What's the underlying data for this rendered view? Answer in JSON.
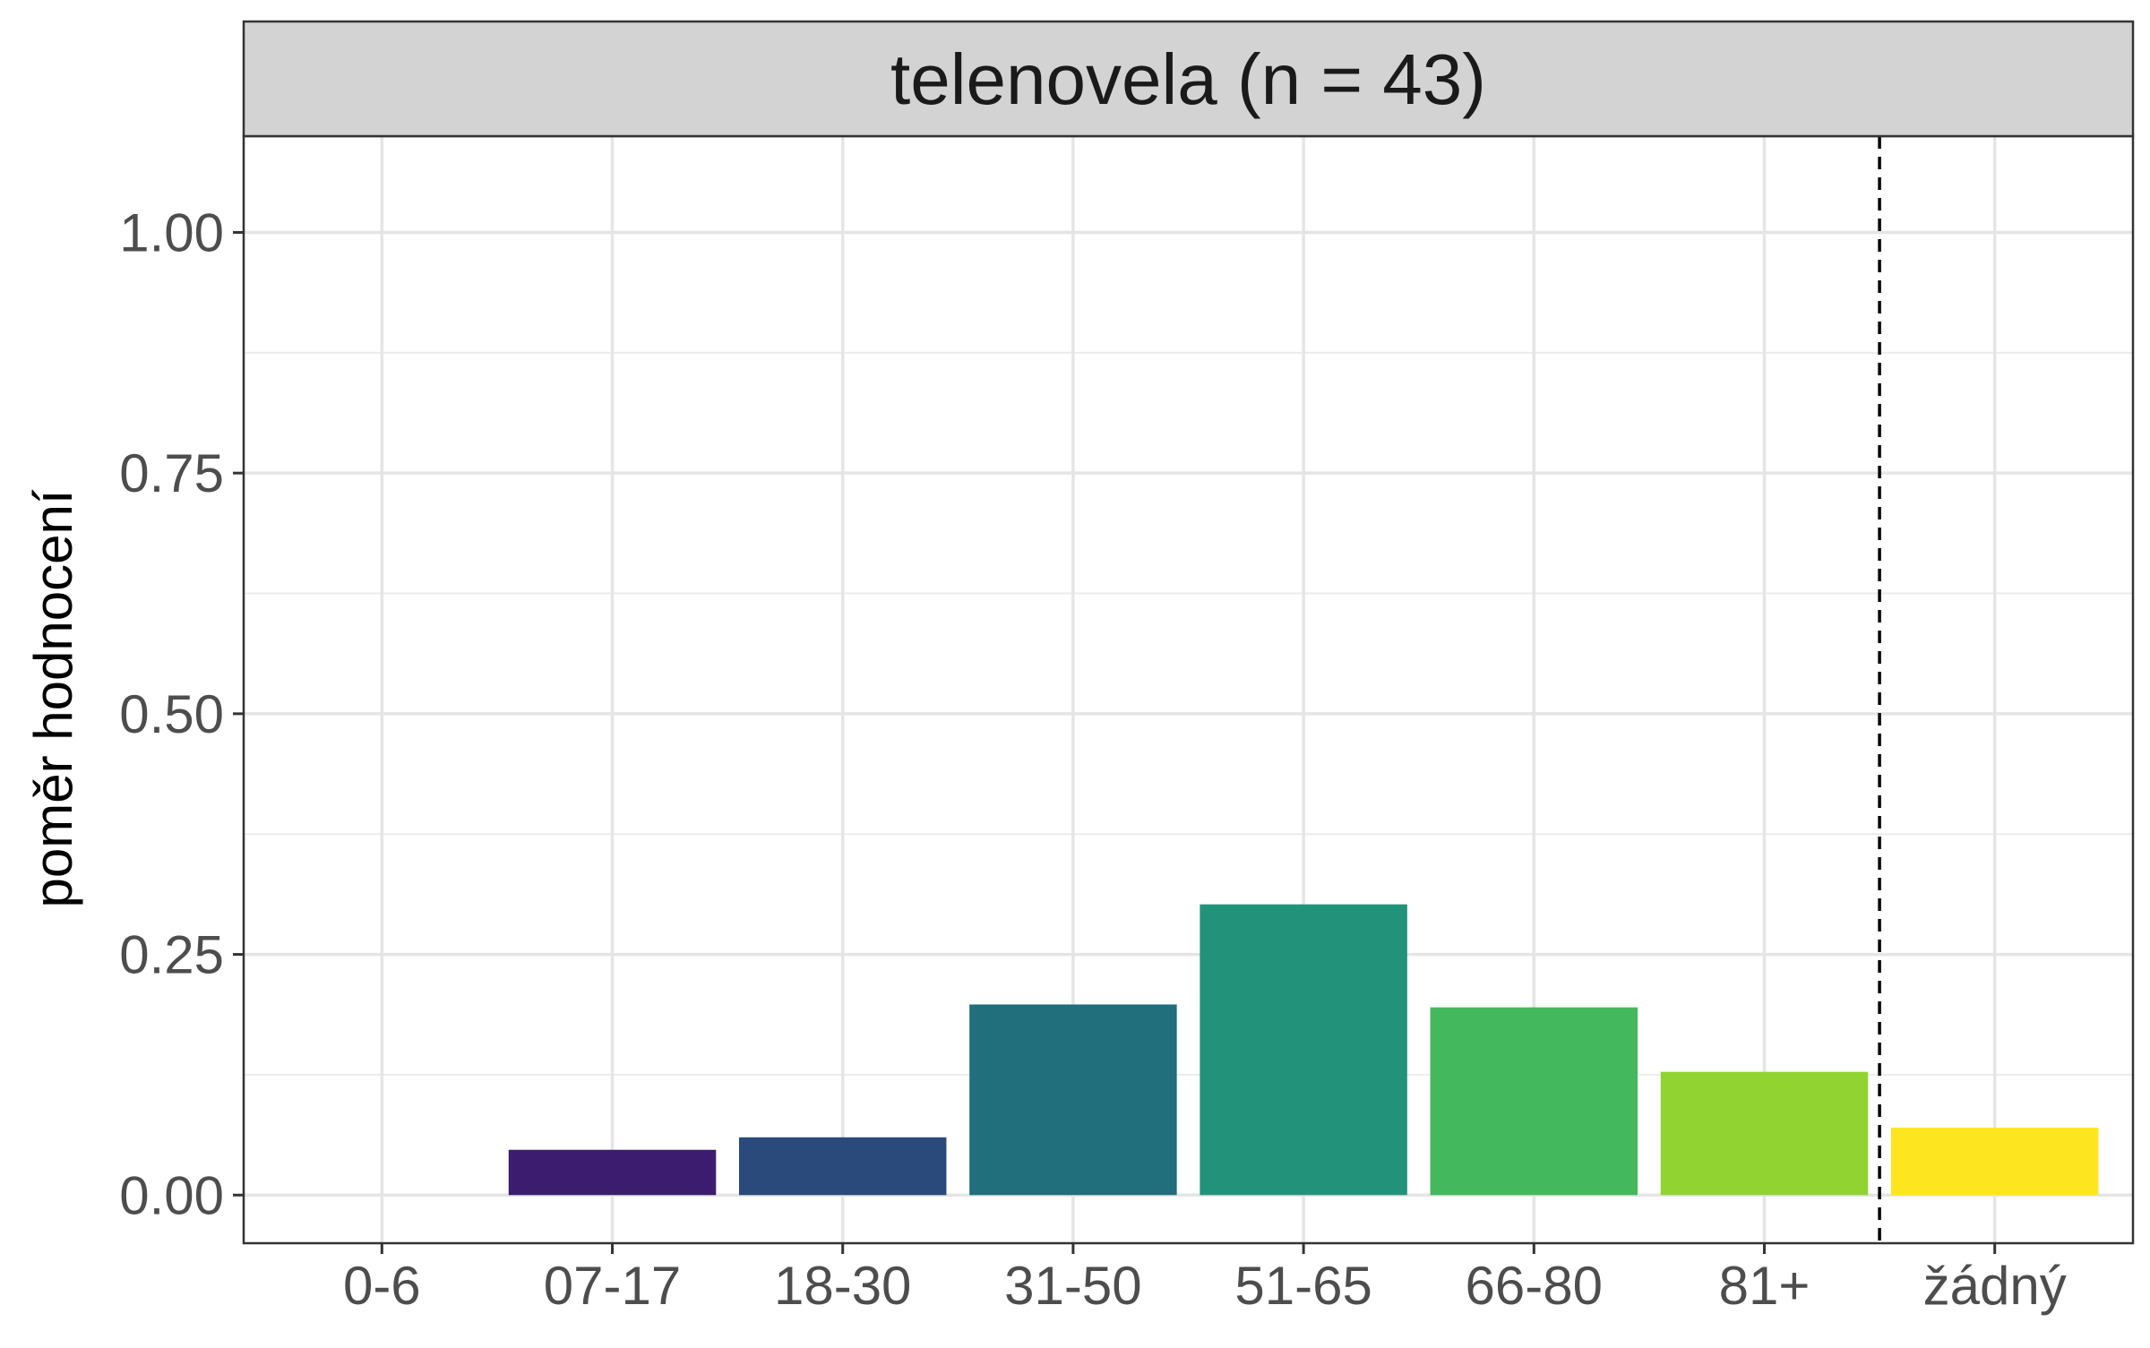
{
  "chart_data": {
    "type": "bar",
    "facet_title": "telenovela (n = 43)",
    "xlabel": "",
    "ylabel": "poměr hodnocení",
    "categories": [
      "0-6",
      "07-17",
      "18-30",
      "31-50",
      "51-65",
      "66-80",
      "81+",
      "žádný"
    ],
    "values": [
      0,
      0.047,
      0.06,
      0.198,
      0.302,
      0.195,
      0.128,
      0.07
    ],
    "colors": [
      "#440154",
      "#3B1C6E",
      "#2A4A7B",
      "#216E7D",
      "#22937A",
      "#44B85C",
      "#91D331",
      "#FDE51F"
    ],
    "ylim": [
      -0.05,
      1.1
    ],
    "yticks": [
      0,
      0.25,
      0.5,
      0.75,
      1.0
    ],
    "ytick_labels": [
      "0.00",
      "0.25",
      "0.50",
      "0.75",
      "1.00"
    ],
    "separator_after_category": "81+",
    "grid": true,
    "legend": "none",
    "strip_color": "#D3D3D3"
  }
}
